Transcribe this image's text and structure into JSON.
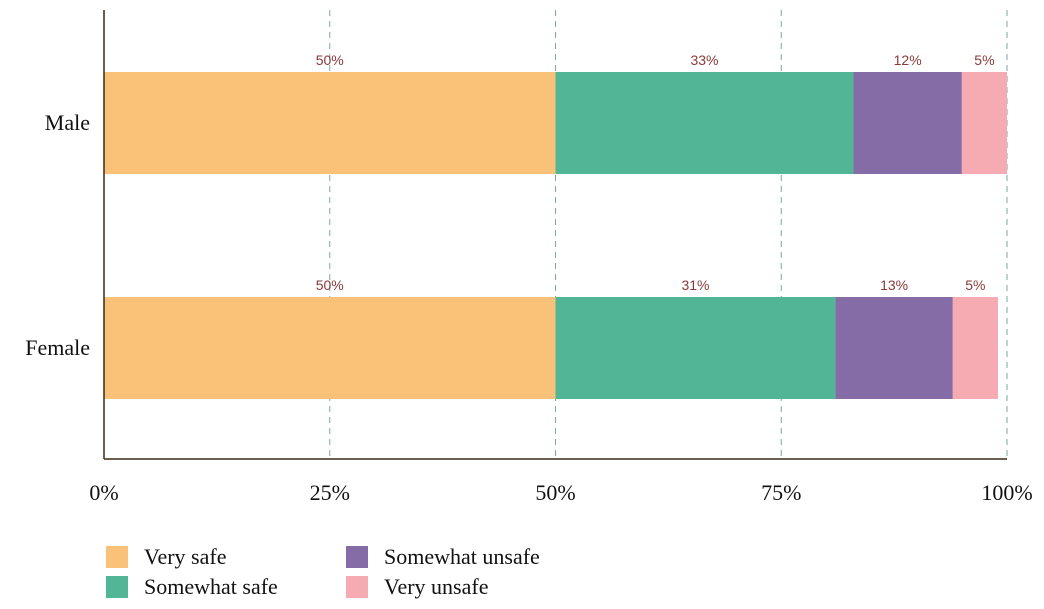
{
  "chart_data": {
    "type": "bar",
    "orientation": "horizontal",
    "stacked": true,
    "categories": [
      "Male",
      "Female"
    ],
    "series": [
      {
        "name": "Very safe",
        "color": "#f9c278",
        "values": [
          50,
          50
        ]
      },
      {
        "name": "Somewhat safe",
        "color": "#52b596",
        "values": [
          33,
          31
        ]
      },
      {
        "name": "Somewhat unsafe",
        "color": "#856ca6",
        "values": [
          12,
          13
        ]
      },
      {
        "name": "Very unsafe",
        "color": "#f5abb1",
        "values": [
          5,
          5
        ]
      }
    ],
    "data_labels": [
      [
        "50%",
        "33%",
        "12%",
        "5%"
      ],
      [
        "50%",
        "31%",
        "13%",
        "5%"
      ]
    ],
    "x_ticks": [
      "0%",
      "25%",
      "50%",
      "75%",
      "100%"
    ],
    "xlim": [
      0,
      100
    ],
    "grid": "vertical dashed",
    "legend_position": "bottom-left",
    "title": "",
    "xlabel": "",
    "ylabel": ""
  }
}
